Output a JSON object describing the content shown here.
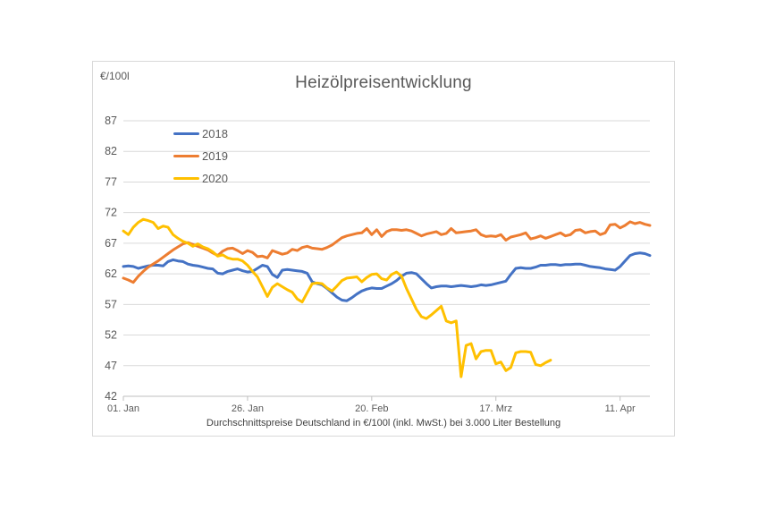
{
  "page": {
    "background": "#ffffff"
  },
  "chart": {
    "title": "Heizölpreisentwicklung",
    "unit_label": "€/100l",
    "footnote": "Durchschnittspreise Deutschland in €/100l (inkl. MwSt.) bei 3.000 Liter Bestellung",
    "colors": {
      "border": "#d9d9d9",
      "gridline": "#d9d9d9",
      "axis_line": "#bfbfbf",
      "tick_mark": "#bfbfbf",
      "axis_text": "#595959",
      "title_text": "#595959",
      "footnote_text": "#404040"
    }
  },
  "chart_data": {
    "type": "line",
    "title": "Heizölpreisentwicklung",
    "subtitle": "",
    "xlabel": "",
    "ylabel": "€/100l",
    "grid": true,
    "legend_position": "inside-top-left",
    "x_axis": {
      "tick_labels": [
        "01. Jan",
        "26. Jan",
        "20. Feb",
        "17. Mrz",
        "11. Apr"
      ],
      "tick_day_indices": [
        0,
        25,
        50,
        75,
        100
      ],
      "total_days": 107
    },
    "y_axis": {
      "ticks": [
        42,
        47,
        52,
        57,
        62,
        67,
        72,
        77,
        82,
        87
      ],
      "min": 42,
      "max": 87,
      "unit": "€/100l"
    },
    "series": [
      {
        "name": "2018",
        "color": "#4472c4",
        "start_day": 0,
        "values": [
          63.2,
          63.3,
          63.2,
          62.9,
          63.1,
          63.3,
          63.4,
          63.4,
          63.3,
          64.0,
          64.3,
          64.1,
          64.0,
          63.6,
          63.4,
          63.3,
          63.1,
          62.9,
          62.8,
          62.1,
          62.0,
          62.4,
          62.6,
          62.8,
          62.5,
          62.3,
          62.4,
          62.9,
          63.4,
          63.2,
          61.9,
          61.4,
          62.6,
          62.7,
          62.6,
          62.5,
          62.4,
          62.1,
          60.7,
          60.4,
          60.2,
          59.6,
          58.9,
          58.2,
          57.7,
          57.6,
          58.1,
          58.7,
          59.2,
          59.5,
          59.7,
          59.6,
          59.6,
          60.0,
          60.4,
          60.9,
          61.6,
          62.1,
          62.2,
          62.0,
          61.2,
          60.4,
          59.7,
          59.9,
          60.0,
          60.0,
          59.9,
          60.0,
          60.1,
          60.0,
          59.9,
          60.0,
          60.2,
          60.1,
          60.2,
          60.4,
          60.6,
          60.8,
          61.9,
          62.9,
          63.0,
          62.9,
          62.9,
          63.1,
          63.4,
          63.4,
          63.5,
          63.5,
          63.4,
          63.5,
          63.5,
          63.6,
          63.6,
          63.4,
          63.2,
          63.1,
          63.0,
          62.8,
          62.7,
          62.6,
          63.2,
          64.1,
          65.0,
          65.3,
          65.4,
          65.3,
          65.0
        ]
      },
      {
        "name": "2019",
        "color": "#ed7d31",
        "start_day": 0,
        "values": [
          61.3,
          61.0,
          60.6,
          61.6,
          62.4,
          63.1,
          63.6,
          64.1,
          64.7,
          65.3,
          65.9,
          66.4,
          66.9,
          67.1,
          66.8,
          66.5,
          66.2,
          65.9,
          65.4,
          65.0,
          65.7,
          66.1,
          66.2,
          65.8,
          65.3,
          65.8,
          65.5,
          64.8,
          64.9,
          64.6,
          65.8,
          65.5,
          65.2,
          65.4,
          66.0,
          65.8,
          66.3,
          66.5,
          66.2,
          66.1,
          66.0,
          66.3,
          66.7,
          67.3,
          67.9,
          68.2,
          68.4,
          68.6,
          68.7,
          69.4,
          68.4,
          69.2,
          68.1,
          68.9,
          69.2,
          69.2,
          69.1,
          69.2,
          69.0,
          68.6,
          68.2,
          68.5,
          68.7,
          68.9,
          68.4,
          68.6,
          69.4,
          68.7,
          68.8,
          68.9,
          69.0,
          69.2,
          68.4,
          68.1,
          68.2,
          68.1,
          68.4,
          67.5,
          68.0,
          68.2,
          68.4,
          68.7,
          67.7,
          67.9,
          68.2,
          67.8,
          68.1,
          68.4,
          68.7,
          68.2,
          68.4,
          69.1,
          69.2,
          68.7,
          68.9,
          69.0,
          68.4,
          68.7,
          70.0,
          70.1,
          69.5,
          69.9,
          70.5,
          70.2,
          70.4,
          70.1,
          69.9
        ]
      },
      {
        "name": "2020",
        "color": "#ffc000",
        "start_day": 0,
        "values": [
          69.0,
          68.4,
          69.6,
          70.4,
          70.9,
          70.7,
          70.4,
          69.4,
          69.8,
          69.6,
          68.4,
          67.8,
          67.3,
          67.0,
          66.5,
          66.9,
          66.4,
          66.1,
          65.6,
          64.9,
          65.1,
          64.6,
          64.4,
          64.4,
          64.1,
          63.4,
          62.4,
          61.5,
          59.9,
          58.3,
          59.8,
          60.4,
          59.9,
          59.4,
          59.0,
          57.9,
          57.4,
          58.9,
          60.4,
          60.5,
          60.4,
          59.7,
          59.2,
          60.0,
          60.9,
          61.3,
          61.4,
          61.5,
          60.7,
          61.4,
          61.9,
          62.0,
          61.2,
          61.0,
          61.9,
          62.3,
          61.6,
          59.6,
          57.9,
          56.2,
          55.0,
          54.7,
          55.3,
          56.0,
          56.7,
          54.3,
          54.0,
          54.3,
          45.2,
          50.3,
          50.6,
          48.1,
          49.3,
          49.5,
          49.5,
          47.3,
          47.6,
          46.2,
          46.7,
          49.1,
          49.3,
          49.3,
          49.2,
          47.2,
          47.0,
          47.5,
          47.9
        ]
      }
    ]
  }
}
